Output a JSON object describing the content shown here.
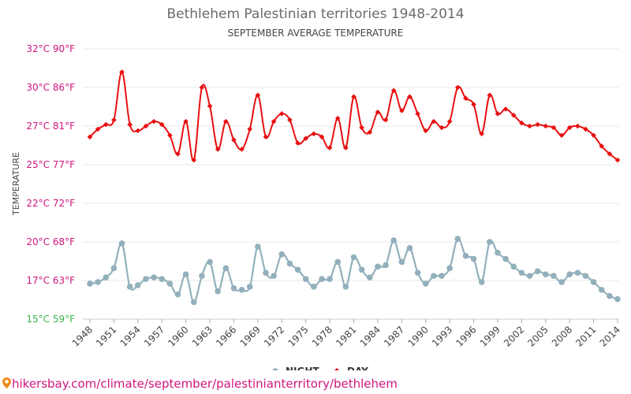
{
  "title": "Bethlehem Palestinian territories 1948-2014",
  "subtitle": "SEPTEMBER AVERAGE TEMPERATURE",
  "source": "hikersbay.com/climate/september/palestinianterritory/bethlehem",
  "colors": {
    "day": "#e81010",
    "night": "#92b0bc",
    "tick_magenta": "#d0157e",
    "tick_green": "#3ab54a",
    "grid": "#e8e8e8"
  },
  "chart_data": {
    "type": "line",
    "title": "Bethlehem Palestinian territories 1948-2014",
    "subtitle": "SEPTEMBER AVERAGE TEMPERATURE",
    "ylabel": "TEMPERATURE",
    "xlabel": "",
    "ylim": [
      15,
      32
    ],
    "y_ticks": [
      {
        "value": 15,
        "label": "15°C 59°F"
      },
      {
        "value": 17.5,
        "label": "17°C 63°F"
      },
      {
        "value": 20,
        "label": "20°C 68°F"
      },
      {
        "value": 22.5,
        "label": "22°C 72°F"
      },
      {
        "value": 25,
        "label": "25°C 77°F"
      },
      {
        "value": 27.5,
        "label": "27°C 81°F"
      },
      {
        "value": 30,
        "label": "30°C 86°F"
      },
      {
        "value": 32.5,
        "label": "32°C 90°F"
      }
    ],
    "x_ticks": [
      "1948",
      "1951",
      "1954",
      "1957",
      "1960",
      "1963",
      "1966",
      "1969",
      "1972",
      "1975",
      "1978",
      "1981",
      "1984",
      "1987",
      "1990",
      "1993",
      "1996",
      "1999",
      "2002",
      "2005",
      "2008",
      "2011",
      "2014"
    ],
    "x": [
      1948,
      1949,
      1950,
      1951,
      1952,
      1953,
      1954,
      1955,
      1956,
      1957,
      1958,
      1959,
      1960,
      1961,
      1962,
      1963,
      1964,
      1965,
      1966,
      1967,
      1968,
      1969,
      1970,
      1971,
      1972,
      1973,
      1974,
      1975,
      1976,
      1977,
      1978,
      1979,
      1980,
      1981,
      1982,
      1983,
      1984,
      1985,
      1986,
      1987,
      1988,
      1989,
      1990,
      1991,
      1992,
      1993,
      1994,
      1995,
      1996,
      1997,
      1998,
      1999,
      2000,
      2001,
      2002,
      2003,
      2004,
      2005,
      2006,
      2007,
      2008,
      2009,
      2010,
      2011,
      2012,
      2013,
      2014
    ],
    "legend_position": "bottom",
    "grid": true,
    "series": [
      {
        "name": "NIGHT",
        "color": "#92b0bc",
        "values": [
          17.3,
          17.4,
          17.7,
          18.3,
          19.9,
          17.1,
          17.2,
          17.6,
          17.7,
          17.6,
          17.3,
          16.6,
          17.9,
          16.1,
          17.8,
          18.7,
          16.8,
          18.3,
          17.0,
          16.9,
          17.1,
          19.7,
          18.0,
          17.8,
          19.2,
          18.6,
          18.2,
          17.6,
          17.1,
          17.6,
          17.6,
          18.7,
          17.1,
          19.0,
          18.2,
          17.7,
          18.4,
          18.5,
          20.1,
          18.7,
          19.6,
          18.0,
          17.3,
          17.8,
          17.8,
          18.3,
          20.2,
          19.1,
          18.9,
          17.4,
          20.0,
          19.3,
          18.9,
          18.4,
          18.0,
          17.8,
          18.1,
          17.9,
          17.8,
          17.4,
          17.9,
          18.0,
          17.8,
          17.4,
          16.9,
          16.5,
          16.3
        ]
      },
      {
        "name": "DAY",
        "color": "#e81010",
        "values": [
          26.8,
          27.3,
          27.6,
          27.9,
          31.0,
          27.6,
          27.2,
          27.5,
          27.8,
          27.6,
          26.9,
          25.7,
          27.8,
          25.3,
          30.0,
          28.8,
          26.0,
          27.8,
          26.6,
          26.0,
          27.3,
          29.5,
          26.8,
          27.8,
          28.3,
          27.9,
          26.4,
          26.7,
          27.0,
          26.8,
          26.1,
          28.0,
          26.1,
          29.4,
          27.4,
          27.1,
          28.4,
          27.9,
          29.8,
          28.5,
          29.4,
          28.3,
          27.2,
          27.8,
          27.4,
          27.8,
          30.0,
          29.3,
          28.9,
          27.0,
          29.5,
          28.3,
          28.6,
          28.2,
          27.7,
          27.5,
          27.6,
          27.5,
          27.4,
          26.9,
          27.4,
          27.5,
          27.3,
          26.9,
          26.2,
          25.7,
          25.3
        ]
      }
    ]
  }
}
